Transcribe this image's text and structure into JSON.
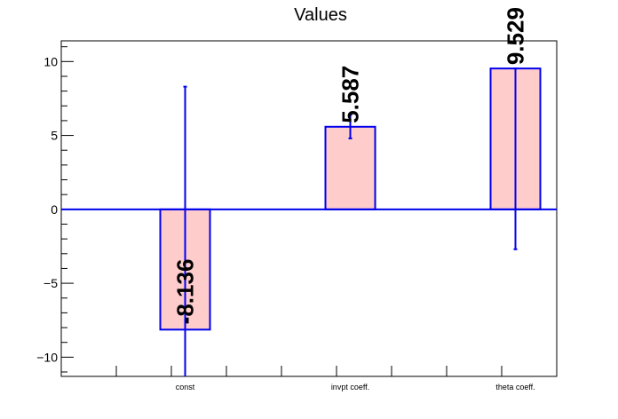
{
  "chart_data": {
    "type": "bar",
    "title": "Values",
    "categories": [
      "const",
      "invpt coeff.",
      "theta coeff."
    ],
    "values": [
      -8.136,
      5.587,
      9.529
    ],
    "value_labels": [
      "-8.136",
      "5.587",
      "9.529"
    ],
    "error_low": [
      -11.3,
      4.8,
      -2.7
    ],
    "error_high": [
      8.3,
      6.4,
      9.529
    ],
    "ylim": [
      -11.3,
      11.4
    ],
    "yticks": [
      -10,
      -5,
      0,
      5,
      10
    ],
    "ytick_labels": [
      "−10",
      "−5",
      "0",
      "5",
      "10"
    ],
    "xlabel": "",
    "ylabel": "",
    "grid": false,
    "legend": "none",
    "colors": {
      "bar_fill": "#ffcccc",
      "bar_outline": "#0000ee",
      "error_bar": "#0000ee",
      "zero_line": "#0000ee",
      "frame": "#000000"
    }
  }
}
